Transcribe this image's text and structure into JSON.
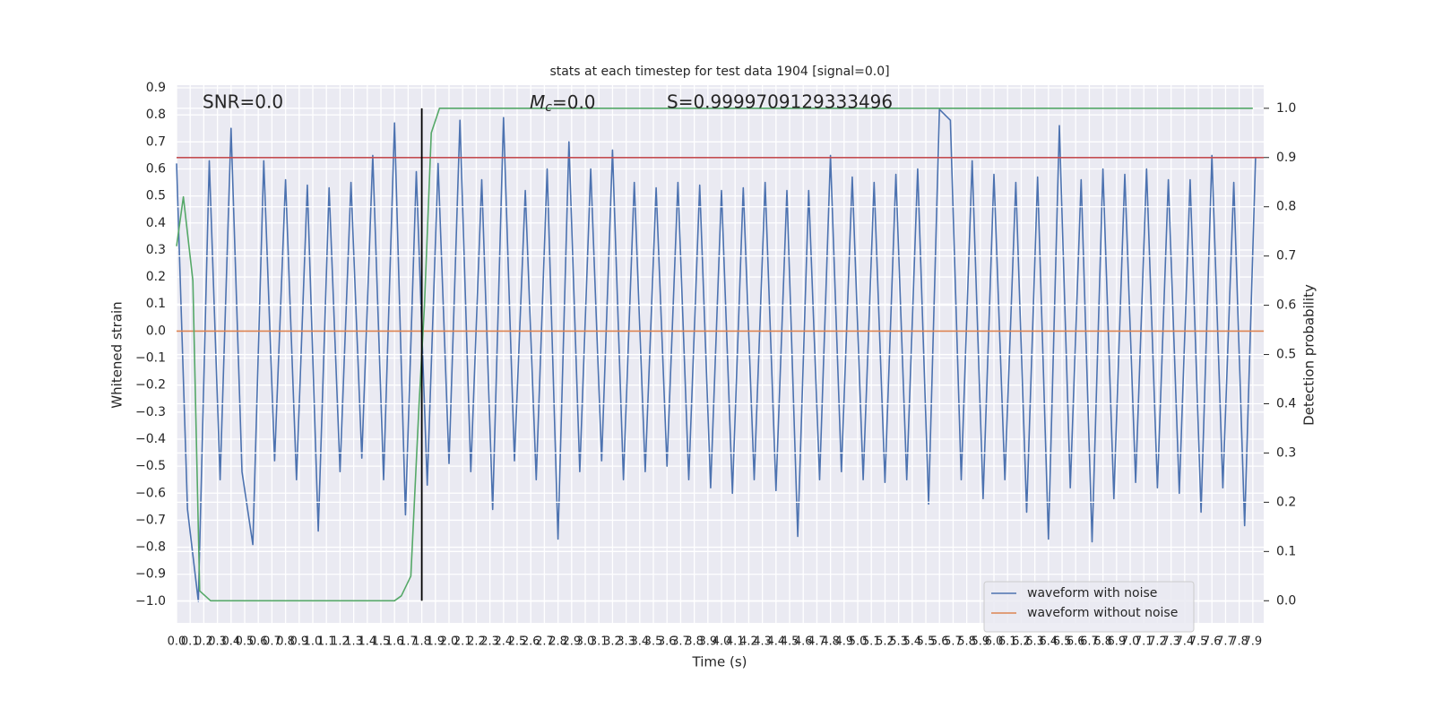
{
  "chart_data": {
    "type": "line",
    "title": "stats at each timestep for test data 1904 [signal=0.0]",
    "x_label": "Time (s)",
    "y_label": "Whitened strain",
    "y2_label": "Detection probability",
    "annotations": [
      {
        "text": "SNR=0.0"
      },
      {
        "main": "M",
        "sub": "c",
        "rest": "=0.0"
      },
      {
        "text": "S=0.9999709129333496"
      }
    ],
    "xlim": [
      0,
      7.98
    ],
    "ylim": [
      -1.08,
      0.91
    ],
    "y2lim": [
      -0.045,
      1.047
    ],
    "grid": true,
    "legend": "lower right",
    "xticks": [
      {
        "value": 0,
        "label": "0.0"
      },
      {
        "value": 0.1,
        "label": "0.1"
      },
      {
        "value": 0.2,
        "label": "0.2"
      },
      {
        "value": 0.3,
        "label": "0.3"
      },
      {
        "value": 0.4,
        "label": "0.4"
      },
      {
        "value": 0.5,
        "label": "0.5"
      },
      {
        "value": 0.6,
        "label": "0.6"
      },
      {
        "value": 0.7,
        "label": "0.7"
      },
      {
        "value": 0.8,
        "label": "0.8"
      },
      {
        "value": 0.9,
        "label": "0.9"
      },
      {
        "value": 1.0,
        "label": "1.0"
      },
      {
        "value": 1.1,
        "label": "1.1"
      },
      {
        "value": 1.2,
        "label": "1.2"
      },
      {
        "value": 1.3,
        "label": "1.3"
      },
      {
        "value": 1.4,
        "label": "1.4"
      },
      {
        "value": 1.5,
        "label": "1.5"
      },
      {
        "value": 1.6,
        "label": "1.6"
      },
      {
        "value": 1.7,
        "label": "1.7"
      },
      {
        "value": 1.8,
        "label": "1.8"
      },
      {
        "value": 1.9,
        "label": "1.9"
      },
      {
        "value": 2.0,
        "label": "2.0"
      },
      {
        "value": 2.1,
        "label": "2.1"
      },
      {
        "value": 2.2,
        "label": "2.2"
      },
      {
        "value": 2.3,
        "label": "2.3"
      },
      {
        "value": 2.4,
        "label": "2.4"
      },
      {
        "value": 2.5,
        "label": "2.5"
      },
      {
        "value": 2.6,
        "label": "2.6"
      },
      {
        "value": 2.7,
        "label": "2.7"
      },
      {
        "value": 2.8,
        "label": "2.8"
      },
      {
        "value": 2.9,
        "label": "2.9"
      },
      {
        "value": 3.0,
        "label": "3.0"
      },
      {
        "value": 3.1,
        "label": "3.1"
      },
      {
        "value": 3.2,
        "label": "3.2"
      },
      {
        "value": 3.3,
        "label": "3.3"
      },
      {
        "value": 3.4,
        "label": "3.4"
      },
      {
        "value": 3.5,
        "label": "3.5"
      },
      {
        "value": 3.6,
        "label": "3.6"
      },
      {
        "value": 3.7,
        "label": "3.7"
      },
      {
        "value": 3.8,
        "label": "3.8"
      },
      {
        "value": 3.9,
        "label": "3.9"
      },
      {
        "value": 4.0,
        "label": "4.0"
      },
      {
        "value": 4.1,
        "label": "4.1"
      },
      {
        "value": 4.2,
        "label": "4.2"
      },
      {
        "value": 4.3,
        "label": "4.3"
      },
      {
        "value": 4.4,
        "label": "4.4"
      },
      {
        "value": 4.5,
        "label": "4.5"
      },
      {
        "value": 4.6,
        "label": "4.6"
      },
      {
        "value": 4.7,
        "label": "4.7"
      },
      {
        "value": 4.8,
        "label": "4.8"
      },
      {
        "value": 4.9,
        "label": "4.9"
      },
      {
        "value": 5.0,
        "label": "5.0"
      },
      {
        "value": 5.1,
        "label": "5.1"
      },
      {
        "value": 5.2,
        "label": "5.2"
      },
      {
        "value": 5.3,
        "label": "5.3"
      },
      {
        "value": 5.4,
        "label": "5.4"
      },
      {
        "value": 5.5,
        "label": "5.5"
      },
      {
        "value": 5.6,
        "label": "5.6"
      },
      {
        "value": 5.7,
        "label": "5.7"
      },
      {
        "value": 5.8,
        "label": "5.8"
      },
      {
        "value": 5.9,
        "label": "5.9"
      },
      {
        "value": 6.0,
        "label": "6.0"
      },
      {
        "value": 6.1,
        "label": "6.1"
      },
      {
        "value": 6.2,
        "label": "6.2"
      },
      {
        "value": 6.3,
        "label": "6.3"
      },
      {
        "value": 6.4,
        "label": "6.4"
      },
      {
        "value": 6.5,
        "label": "6.5"
      },
      {
        "value": 6.6,
        "label": "6.6"
      },
      {
        "value": 6.7,
        "label": "6.7"
      },
      {
        "value": 6.8,
        "label": "6.8"
      },
      {
        "value": 6.9,
        "label": "6.9"
      },
      {
        "value": 7.0,
        "label": "7.0"
      },
      {
        "value": 7.1,
        "label": "7.1"
      },
      {
        "value": 7.2,
        "label": "7.2"
      },
      {
        "value": 7.3,
        "label": "7.3"
      },
      {
        "value": 7.4,
        "label": "7.4"
      },
      {
        "value": 7.5,
        "label": "7.5"
      },
      {
        "value": 7.6,
        "label": "7.6"
      },
      {
        "value": 7.7,
        "label": "7.7"
      },
      {
        "value": 7.8,
        "label": "7.8"
      },
      {
        "value": 7.9,
        "label": "7.9"
      }
    ],
    "yticks": [
      {
        "value": 0.9,
        "label": "0.9"
      },
      {
        "value": 0.8,
        "label": "0.8"
      },
      {
        "value": 0.7,
        "label": "0.7"
      },
      {
        "value": 0.6,
        "label": "0.6"
      },
      {
        "value": 0.5,
        "label": "0.5"
      },
      {
        "value": 0.4,
        "label": "0.4"
      },
      {
        "value": 0.3,
        "label": "0.3"
      },
      {
        "value": 0.2,
        "label": "0.2"
      },
      {
        "value": 0.1,
        "label": "0.1"
      },
      {
        "value": 0,
        "label": "0.0"
      },
      {
        "value": -0.1,
        "label": "−0.1"
      },
      {
        "value": -0.2,
        "label": "−0.2"
      },
      {
        "value": -0.3,
        "label": "−0.3"
      },
      {
        "value": -0.4,
        "label": "−0.4"
      },
      {
        "value": -0.5,
        "label": "−0.5"
      },
      {
        "value": -0.6,
        "label": "−0.6"
      },
      {
        "value": -0.7,
        "label": "−0.7"
      },
      {
        "value": -0.8,
        "label": "−0.8"
      },
      {
        "value": -0.9,
        "label": "−0.9"
      },
      {
        "value": -1.0,
        "label": "−1.0"
      }
    ],
    "y2ticks": [
      {
        "value": 1.0,
        "label": "1.0"
      },
      {
        "value": 0.9,
        "label": "0.9"
      },
      {
        "value": 0.8,
        "label": "0.8"
      },
      {
        "value": 0.7,
        "label": "0.7"
      },
      {
        "value": 0.6,
        "label": "0.6"
      },
      {
        "value": 0.5,
        "label": "0.5"
      },
      {
        "value": 0.4,
        "label": "0.4"
      },
      {
        "value": 0.3,
        "label": "0.3"
      },
      {
        "value": 0.2,
        "label": "0.2"
      },
      {
        "value": 0.1,
        "label": "0.1"
      },
      {
        "value": 0,
        "label": "0.0"
      }
    ],
    "series": [
      {
        "name": "waveform with noise",
        "color": "#4c72b0",
        "x": [
          0,
          0.08,
          0.16,
          0.24,
          0.32,
          0.4,
          0.48,
          0.56,
          0.64,
          0.72,
          0.8,
          0.88,
          0.96,
          1.04,
          1.12,
          1.2,
          1.28,
          1.36,
          1.44,
          1.52,
          1.6,
          1.68,
          1.76,
          1.84,
          1.92,
          2.0,
          2.08,
          2.16,
          2.24,
          2.32,
          2.4,
          2.48,
          2.56,
          2.64,
          2.72,
          2.8,
          2.88,
          2.96,
          3.04,
          3.12,
          3.2,
          3.28,
          3.36,
          3.44,
          3.52,
          3.6,
          3.68,
          3.76,
          3.84,
          3.92,
          4.0,
          4.08,
          4.16,
          4.24,
          4.32,
          4.4,
          4.48,
          4.56,
          4.64,
          4.72,
          4.8,
          4.88,
          4.96,
          5.04,
          5.12,
          5.2,
          5.28,
          5.36,
          5.44,
          5.52,
          5.6,
          5.68,
          5.76,
          5.84,
          5.92,
          6.0,
          6.08,
          6.16,
          6.24,
          6.32,
          6.4,
          6.48,
          6.56,
          6.64,
          6.72,
          6.8,
          6.88,
          6.96,
          7.04,
          7.12,
          7.2,
          7.28,
          7.36,
          7.44,
          7.52,
          7.6,
          7.68,
          7.76,
          7.84,
          7.92
        ],
        "values": [
          0.62,
          -0.66,
          -1.0,
          0.63,
          -0.55,
          0.75,
          -0.52,
          -0.79,
          0.63,
          -0.48,
          0.56,
          -0.55,
          0.54,
          -0.74,
          0.53,
          -0.52,
          0.55,
          -0.47,
          0.65,
          -0.55,
          0.77,
          -0.68,
          0.59,
          -0.57,
          0.62,
          -0.49,
          0.78,
          -0.52,
          0.56,
          -0.66,
          0.79,
          -0.48,
          0.52,
          -0.55,
          0.6,
          -0.77,
          0.7,
          -0.52,
          0.6,
          -0.48,
          0.67,
          -0.55,
          0.55,
          -0.52,
          0.53,
          -0.5,
          0.55,
          -0.55,
          0.54,
          -0.58,
          0.52,
          -0.6,
          0.53,
          -0.55,
          0.55,
          -0.59,
          0.52,
          -0.76,
          0.52,
          -0.55,
          0.65,
          -0.52,
          0.57,
          -0.55,
          0.55,
          -0.56,
          0.58,
          -0.55,
          0.6,
          -0.64,
          0.82,
          0.78,
          -0.55,
          0.63,
          -0.62,
          0.58,
          -0.55,
          0.55,
          -0.67,
          0.57,
          -0.77,
          0.76,
          -0.58,
          0.56,
          -0.78,
          0.6,
          -0.62,
          0.58,
          -0.56,
          0.6,
          -0.58,
          0.56,
          -0.6,
          0.56,
          -0.67,
          0.65,
          -0.58,
          0.55,
          -0.72,
          0.64
        ]
      },
      {
        "name": "waveform without noise",
        "color": "#dd8452",
        "x": [
          0,
          7.98
        ],
        "values": [
          0,
          0
        ]
      }
    ],
    "y2_series": [
      {
        "color": "#55a868",
        "axis": "y2",
        "x": [
          0,
          0.05,
          0.12,
          0.17,
          0.25,
          1.6,
          1.65,
          1.72,
          1.78,
          1.82,
          1.87,
          1.93,
          7.9
        ],
        "values": [
          0.72,
          0.82,
          0.65,
          0.02,
          0,
          0,
          0.01,
          0.05,
          0.4,
          0.6,
          0.95,
          1.0,
          1.0
        ]
      }
    ],
    "hlines": [
      {
        "axis": "y2",
        "value": 0.9,
        "color": "#c44e52"
      }
    ],
    "vlines": [
      {
        "x": 1.8,
        "axis": "y2",
        "ymin": 0,
        "ymax": 1.0,
        "color": "#000000"
      }
    ]
  }
}
